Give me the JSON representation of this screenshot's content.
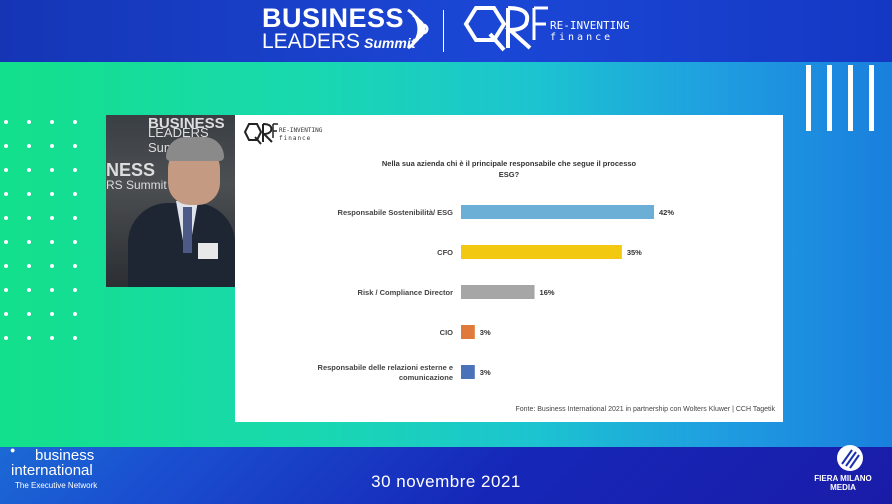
{
  "header": {
    "business": "BUSINESS",
    "leaders": "LEADERS",
    "summit": "Summit",
    "rf_line1": "RE-INVENTING",
    "rf_line2": "finance"
  },
  "video": {
    "wall_line1": "BUSINESS",
    "wall_line2": "LEADERS Summit",
    "wall_line3": "NESS",
    "wall_line4": "RS Summit"
  },
  "slide": {
    "logo_line1": "RE-INVENTING",
    "logo_line2": "finance",
    "question_line1": "Nella sua azienda chi è il principale responsabile che segue il processo",
    "question_line2": "ESG?",
    "source": "Fonte: Business International 2021 in partnership con Wolters Kluwer | CCH Tagetik"
  },
  "chart_data": {
    "type": "bar",
    "orientation": "horizontal",
    "categories": [
      [
        "Responsabile Sostenibilità/ ESG"
      ],
      [
        "CFO"
      ],
      [
        "Risk / Compliance Director"
      ],
      [
        "CIO"
      ],
      [
        "Responsabile delle relazioni esterne e",
        "comunicazione"
      ]
    ],
    "values": [
      42,
      35,
      16,
      3,
      3
    ],
    "value_labels": [
      "42%",
      "35%",
      "16%",
      "3%",
      "3%"
    ],
    "colors": [
      "#6baed6",
      "#f2c811",
      "#a6a6a6",
      "#e07a3a",
      "#4a72b8"
    ],
    "xlim": [
      0,
      100
    ]
  },
  "footer": {
    "date": "30 novembre 2021",
    "bi_line1": "business",
    "bi_line2": "international",
    "bi_line3": "The Executive Network",
    "fm_line1": "FIERA MILANO",
    "fm_line2": "MEDIA"
  }
}
